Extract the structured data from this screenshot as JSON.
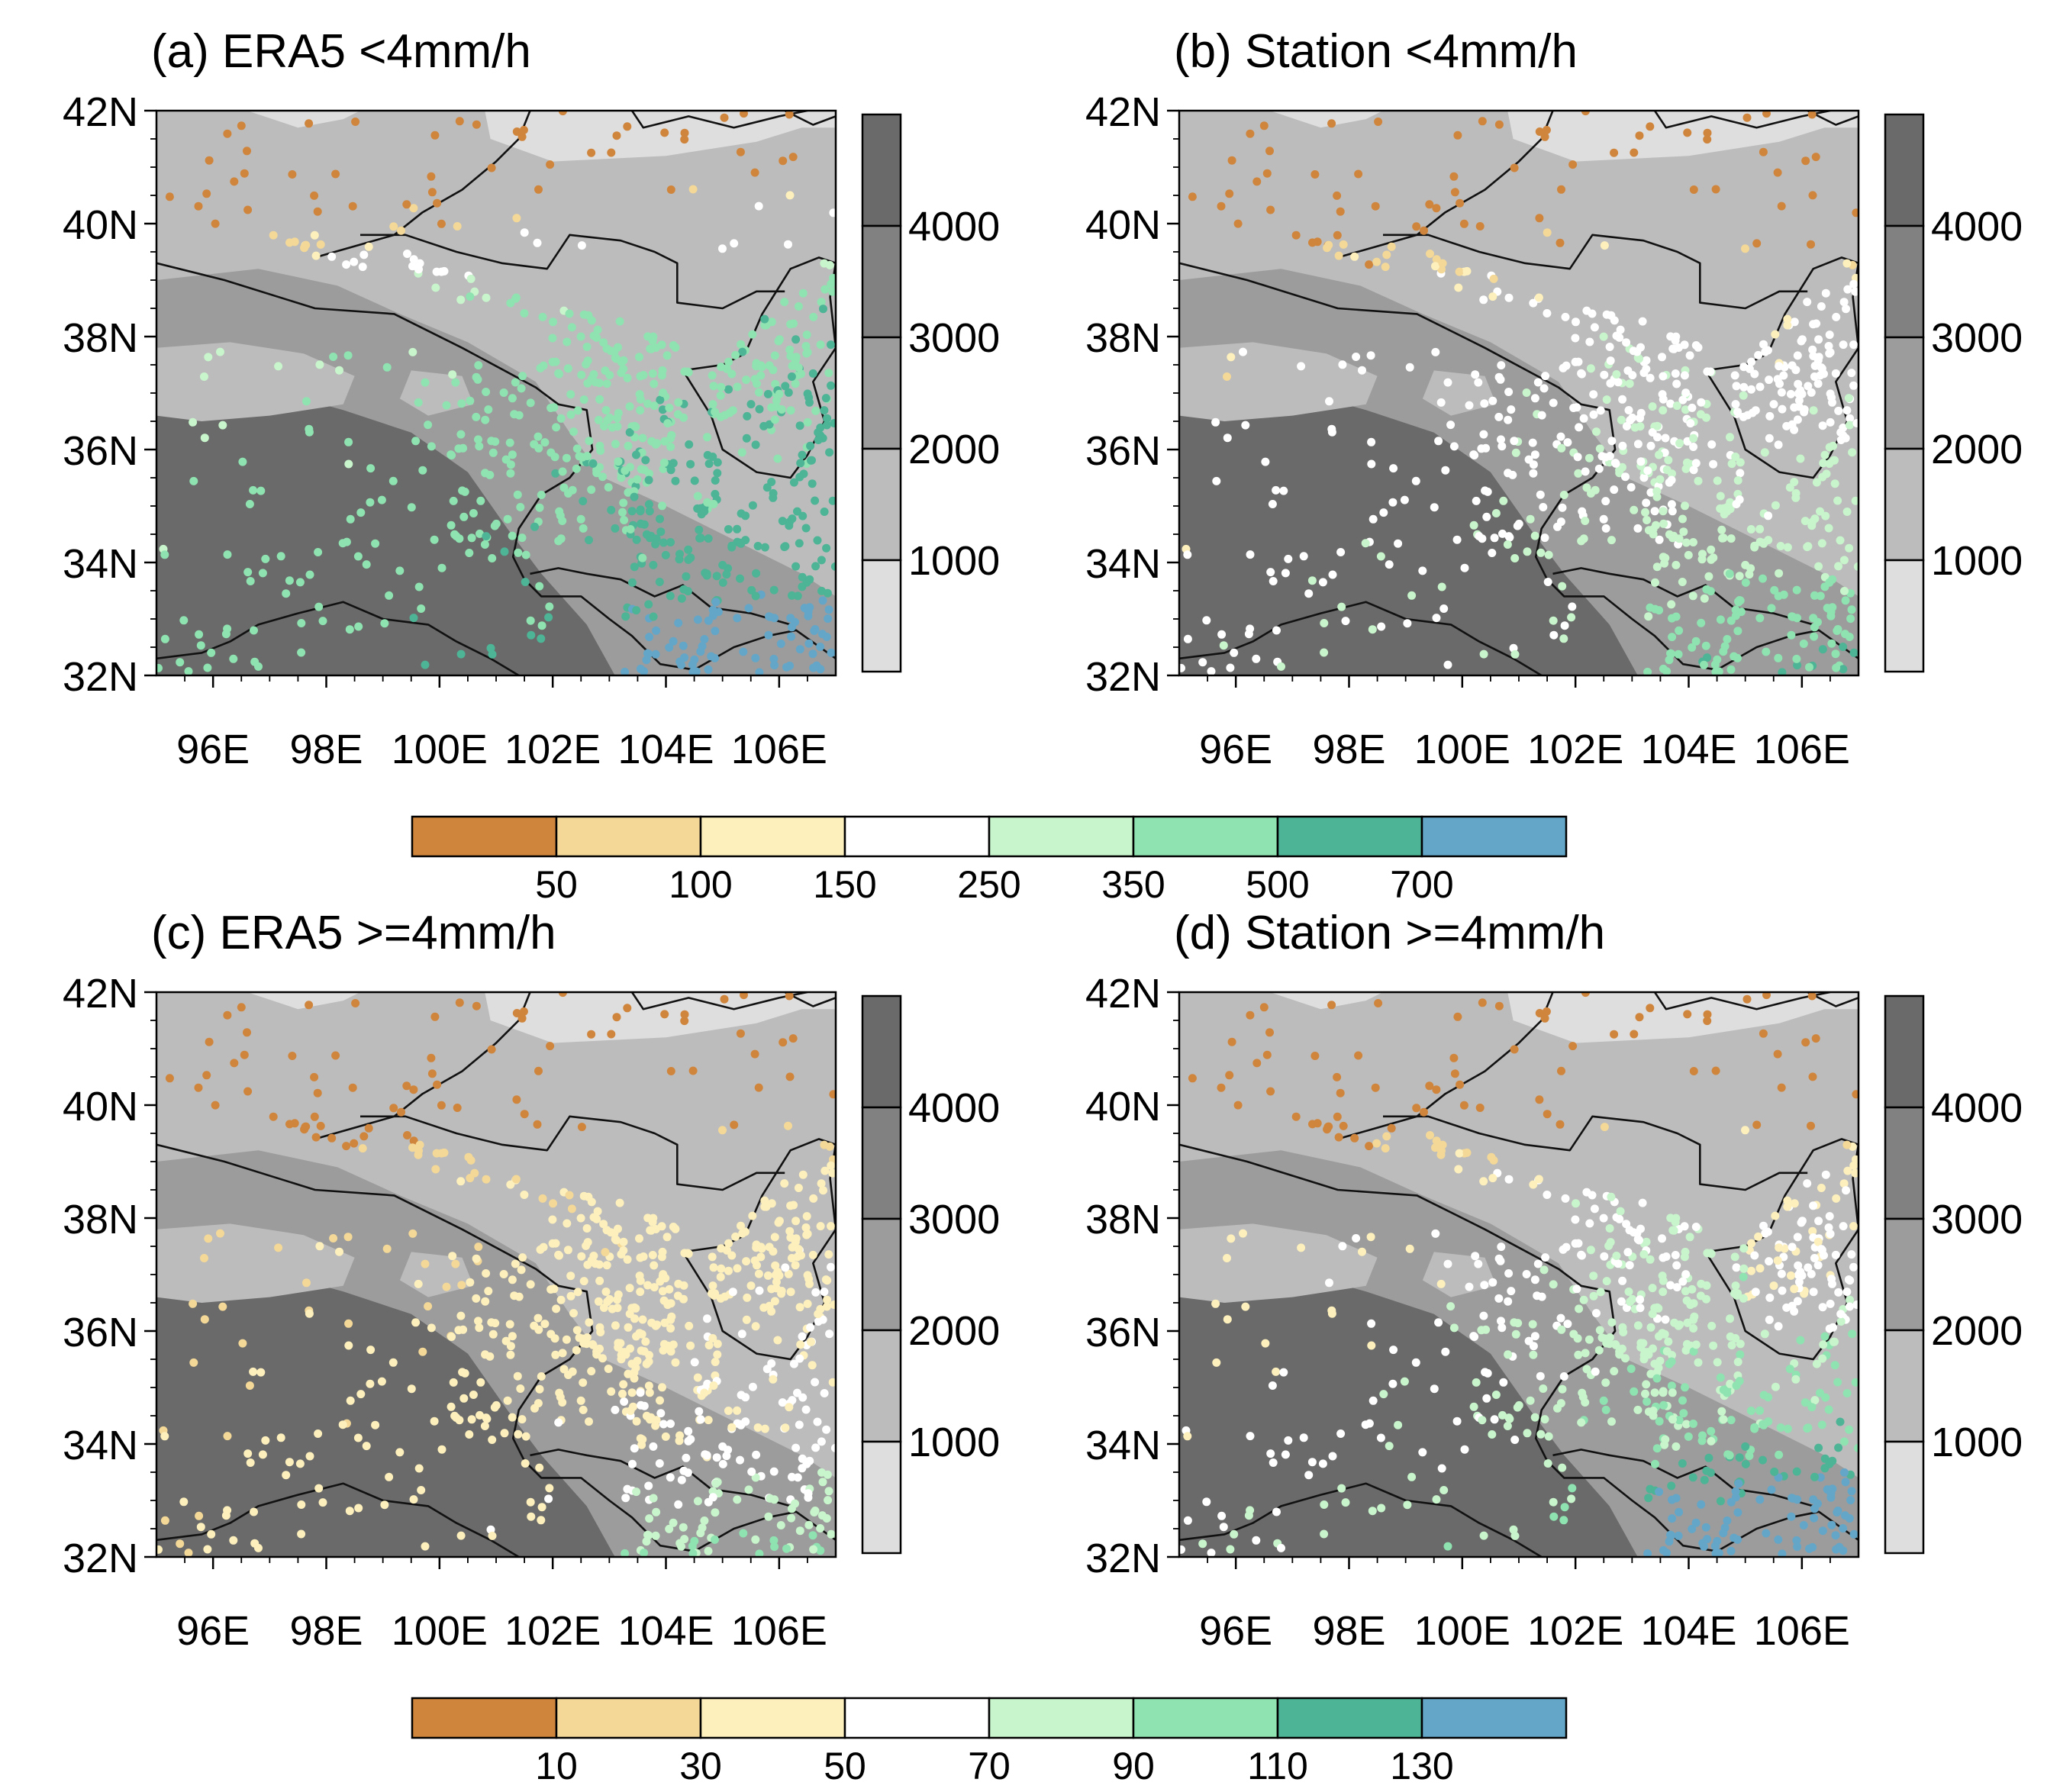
{
  "figure": {
    "latitude_labels": [
      "42N",
      "40N",
      "38N",
      "36N",
      "34N",
      "32N"
    ],
    "longitude_labels": [
      "96E",
      "98E",
      "100E",
      "102E",
      "104E",
      "106E"
    ],
    "elevation_colorbar": {
      "labels": [
        "4000",
        "3000",
        "2000",
        "1000"
      ],
      "colors": [
        "#6a6a6a",
        "#818181",
        "#9c9c9c",
        "#bcbcbc",
        "#dedede"
      ]
    },
    "panels": [
      {
        "id": "a",
        "title": "(a) ERA5 <4mm/h",
        "scale": "low"
      },
      {
        "id": "b",
        "title": "(b) Station <4mm/h",
        "scale": "low"
      },
      {
        "id": "c",
        "title": "(c) ERA5 >=4mm/h",
        "scale": "high"
      },
      {
        "id": "d",
        "title": "(d) Station >=4mm/h",
        "scale": "high"
      }
    ],
    "point_colors": [
      "#d0853c",
      "#f3d898",
      "#fdf0bd",
      "#ffffff",
      "#c8f5cc",
      "#8fe3b1",
      "#4db496",
      "#64a6c8"
    ],
    "colorbars": {
      "low": {
        "labels": [
          "50",
          "100",
          "150",
          "250",
          "350",
          "500",
          "700"
        ]
      },
      "high": {
        "labels": [
          "10",
          "30",
          "50",
          "70",
          "90",
          "110",
          "130"
        ]
      }
    }
  }
}
